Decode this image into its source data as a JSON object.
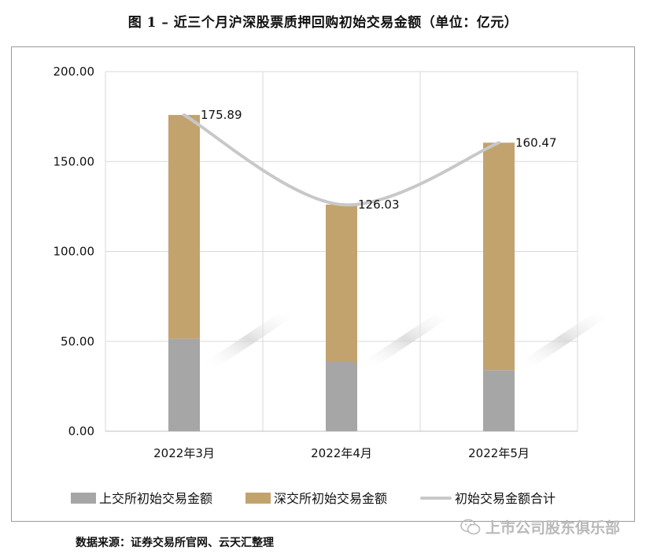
{
  "title": "图 1 – 近三个月沪深股票质押回购初始交易金额（单位：亿元）",
  "source": "数据来源：证券交易所官网、云天汇整理",
  "watermark": "上市公司股东俱乐部",
  "colors": {
    "sh": "#a6a6a6",
    "sz": "#c2a36e",
    "total": "#c8c8c8",
    "grid": "#d9d9d9"
  },
  "chart_data": {
    "type": "bar",
    "stacked": true,
    "categories": [
      "2022年3月",
      "2022年4月",
      "2022年5月"
    ],
    "series": [
      {
        "name": "上交所初始交易金额",
        "values": [
          51.5,
          38.5,
          34.0
        ]
      },
      {
        "name": "深交所初始交易金额",
        "values": [
          124.39,
          87.53,
          126.47
        ]
      }
    ],
    "line": {
      "name": "初始交易金额合计",
      "values": [
        175.89,
        126.03,
        160.47
      ]
    },
    "data_labels": [
      "175.89",
      "126.03",
      "160.47"
    ],
    "y_ticks": [
      "0.00",
      "50.00",
      "100.00",
      "150.00",
      "200.00"
    ],
    "ylim": [
      0,
      200
    ],
    "grid": true,
    "legend": "bottom"
  }
}
